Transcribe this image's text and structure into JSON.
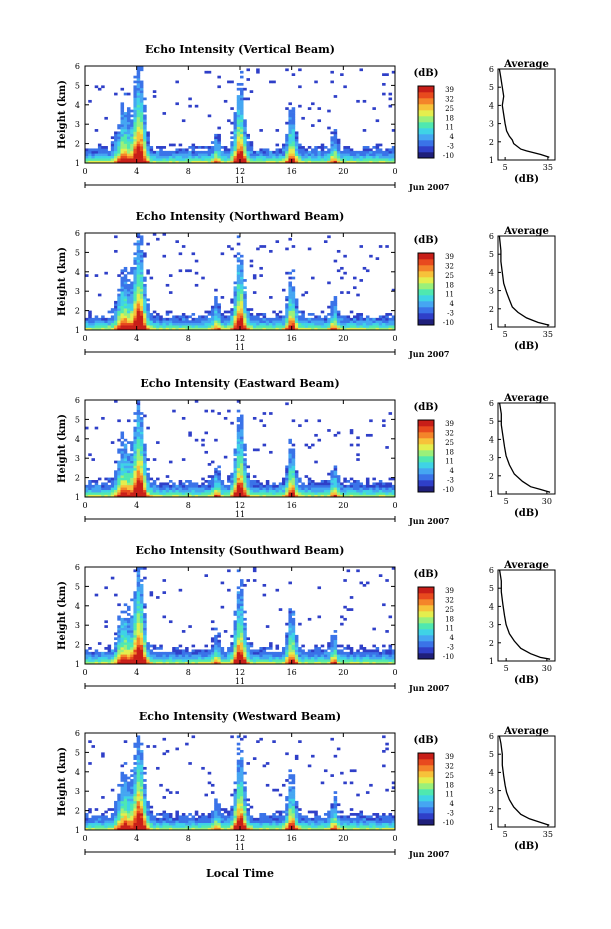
{
  "figure": {
    "common_xlabel": "Local Time",
    "colors": {
      "colormap": [
        "#1f1f7a",
        "#2f3fc8",
        "#3a73e8",
        "#45a6f2",
        "#3fd3e6",
        "#4fe8b0",
        "#9af07a",
        "#e4ee4e",
        "#f7c23a",
        "#f4842a",
        "#e84a1e",
        "#c81e18"
      ]
    }
  },
  "chart_data": [
    {
      "type": "heatmap",
      "title": "Echo Intensity (Vertical Beam)",
      "ylabel": "Height (km)",
      "x_ticks": [
        "0",
        "4",
        "8",
        "12",
        "16",
        "20",
        "0"
      ],
      "x_range": [
        0,
        24
      ],
      "date_label": "11",
      "month_label": "Jun 2007",
      "y_ticks": [
        "1",
        "2",
        "3",
        "4",
        "5",
        "6"
      ],
      "y_range": [
        1,
        6
      ],
      "colorbar": {
        "label": "(dB)",
        "ticks": [
          "39",
          "32",
          "25",
          "18",
          "11",
          "4",
          "-3",
          "-10"
        ],
        "range": [
          -10,
          39
        ]
      },
      "inset": {
        "title": "Average",
        "xlabel": "(dB)",
        "x_ticks": [
          "5",
          "35"
        ],
        "x_range": [
          0,
          40
        ],
        "y_ticks": [
          "1",
          "2",
          "3",
          "4",
          "5",
          "6"
        ],
        "profile": [
          [
            36,
            1.15
          ],
          [
            30,
            1.3
          ],
          [
            20,
            1.5
          ],
          [
            16,
            1.6
          ],
          [
            11,
            1.9
          ],
          [
            10,
            2.1
          ],
          [
            8,
            2.3
          ],
          [
            6,
            2.6
          ],
          [
            5,
            3
          ],
          [
            4,
            3.5
          ],
          [
            3,
            4
          ],
          [
            4,
            4.5
          ],
          [
            3,
            5
          ],
          [
            2,
            5.5
          ],
          [
            1,
            6
          ]
        ]
      }
    },
    {
      "type": "heatmap",
      "title": "Echo Intensity (Northward Beam)",
      "ylabel": "Height (km)",
      "x_ticks": [
        "0",
        "4",
        "8",
        "12",
        "16",
        "20",
        "0"
      ],
      "x_range": [
        0,
        24
      ],
      "date_label": "11",
      "month_label": "Jun 2007",
      "y_ticks": [
        "1",
        "2",
        "3",
        "4",
        "5",
        "6"
      ],
      "y_range": [
        1,
        6
      ],
      "colorbar": {
        "label": "(dB)",
        "ticks": [
          "39",
          "32",
          "25",
          "18",
          "11",
          "4",
          "-3",
          "-10"
        ],
        "range": [
          -10,
          39
        ]
      },
      "inset": {
        "title": "Average",
        "xlabel": "(dB)",
        "x_ticks": [
          "5",
          "35"
        ],
        "x_range": [
          0,
          40
        ],
        "y_ticks": [
          "1",
          "2",
          "3",
          "4",
          "5",
          "6"
        ],
        "profile": [
          [
            36,
            1.1
          ],
          [
            28,
            1.25
          ],
          [
            20,
            1.5
          ],
          [
            14,
            1.8
          ],
          [
            10,
            2.1
          ],
          [
            8,
            2.5
          ],
          [
            6,
            2.9
          ],
          [
            4,
            3.4
          ],
          [
            3,
            4
          ],
          [
            2,
            4.6
          ],
          [
            2,
            5.2
          ],
          [
            1,
            6
          ]
        ]
      }
    },
    {
      "type": "heatmap",
      "title": "Echo Intensity (Eastward Beam)",
      "ylabel": "Height (km)",
      "x_ticks": [
        "0",
        "4",
        "8",
        "12",
        "16",
        "20",
        "0"
      ],
      "x_range": [
        0,
        24
      ],
      "date_label": "11",
      "month_label": "Jun 2007",
      "y_ticks": [
        "1",
        "2",
        "3",
        "4",
        "5",
        "6"
      ],
      "y_range": [
        1,
        6
      ],
      "colorbar": {
        "label": "(dB)",
        "ticks": [
          "39",
          "32",
          "25",
          "18",
          "11",
          "4",
          "-3",
          "-10"
        ],
        "range": [
          -10,
          39
        ]
      },
      "inset": {
        "title": "Average",
        "xlabel": "(dB)",
        "x_ticks": [
          "5",
          "30"
        ],
        "x_range": [
          0,
          35
        ],
        "y_ticks": [
          "1",
          "2",
          "3",
          "4",
          "5",
          "6"
        ],
        "profile": [
          [
            32,
            1.1
          ],
          [
            26,
            1.25
          ],
          [
            20,
            1.4
          ],
          [
            15,
            1.7
          ],
          [
            10,
            2.1
          ],
          [
            7,
            2.6
          ],
          [
            5,
            3.1
          ],
          [
            4,
            3.6
          ],
          [
            3,
            4.2
          ],
          [
            2,
            4.8
          ],
          [
            2,
            5.4
          ],
          [
            1,
            6
          ]
        ]
      }
    },
    {
      "type": "heatmap",
      "title": "Echo Intensity (Southward Beam)",
      "ylabel": "Height (km)",
      "x_ticks": [
        "0",
        "4",
        "8",
        "12",
        "16",
        "20",
        "0"
      ],
      "x_range": [
        0,
        24
      ],
      "date_label": "11",
      "month_label": "Jun 2007",
      "y_ticks": [
        "1",
        "2",
        "3",
        "4",
        "5",
        "6"
      ],
      "y_range": [
        1,
        6
      ],
      "colorbar": {
        "label": "(dB)",
        "ticks": [
          "39",
          "32",
          "25",
          "18",
          "11",
          "4",
          "-3",
          "-10"
        ],
        "range": [
          -10,
          39
        ]
      },
      "inset": {
        "title": "Average",
        "xlabel": "(dB)",
        "x_ticks": [
          "5",
          "30"
        ],
        "x_range": [
          0,
          35
        ],
        "y_ticks": [
          "1",
          "2",
          "3",
          "4",
          "5",
          "6"
        ],
        "profile": [
          [
            32,
            1.1
          ],
          [
            26,
            1.2
          ],
          [
            20,
            1.4
          ],
          [
            14,
            1.7
          ],
          [
            10,
            2.1
          ],
          [
            7,
            2.5
          ],
          [
            5,
            3
          ],
          [
            4,
            3.5
          ],
          [
            3,
            4.1
          ],
          [
            2,
            4.8
          ],
          [
            2,
            5.4
          ],
          [
            1,
            6
          ]
        ]
      }
    },
    {
      "type": "heatmap",
      "title": "Echo Intensity (Westward Beam)",
      "ylabel": "Height (km)",
      "x_ticks": [
        "0",
        "4",
        "8",
        "12",
        "16",
        "20",
        "0"
      ],
      "x_range": [
        0,
        24
      ],
      "date_label": "11",
      "month_label": "Jun 2007",
      "y_ticks": [
        "1",
        "2",
        "3",
        "4",
        "5",
        "6"
      ],
      "y_range": [
        1,
        6
      ],
      "colorbar": {
        "label": "(dB)",
        "ticks": [
          "39",
          "32",
          "25",
          "18",
          "11",
          "4",
          "-3",
          "-10"
        ],
        "range": [
          -10,
          39
        ]
      },
      "inset": {
        "title": "Average",
        "xlabel": "(dB)",
        "x_ticks": [
          "5",
          "35"
        ],
        "x_range": [
          0,
          40
        ],
        "y_ticks": [
          "1",
          "2",
          "3",
          "4",
          "5",
          "6"
        ],
        "profile": [
          [
            36,
            1.1
          ],
          [
            30,
            1.25
          ],
          [
            22,
            1.45
          ],
          [
            16,
            1.7
          ],
          [
            11,
            2.1
          ],
          [
            8,
            2.5
          ],
          [
            6,
            2.9
          ],
          [
            5,
            3.3
          ],
          [
            4,
            3.8
          ],
          [
            3,
            4.4
          ],
          [
            3,
            5
          ],
          [
            2,
            5.6
          ],
          [
            1,
            6
          ]
        ]
      }
    }
  ]
}
